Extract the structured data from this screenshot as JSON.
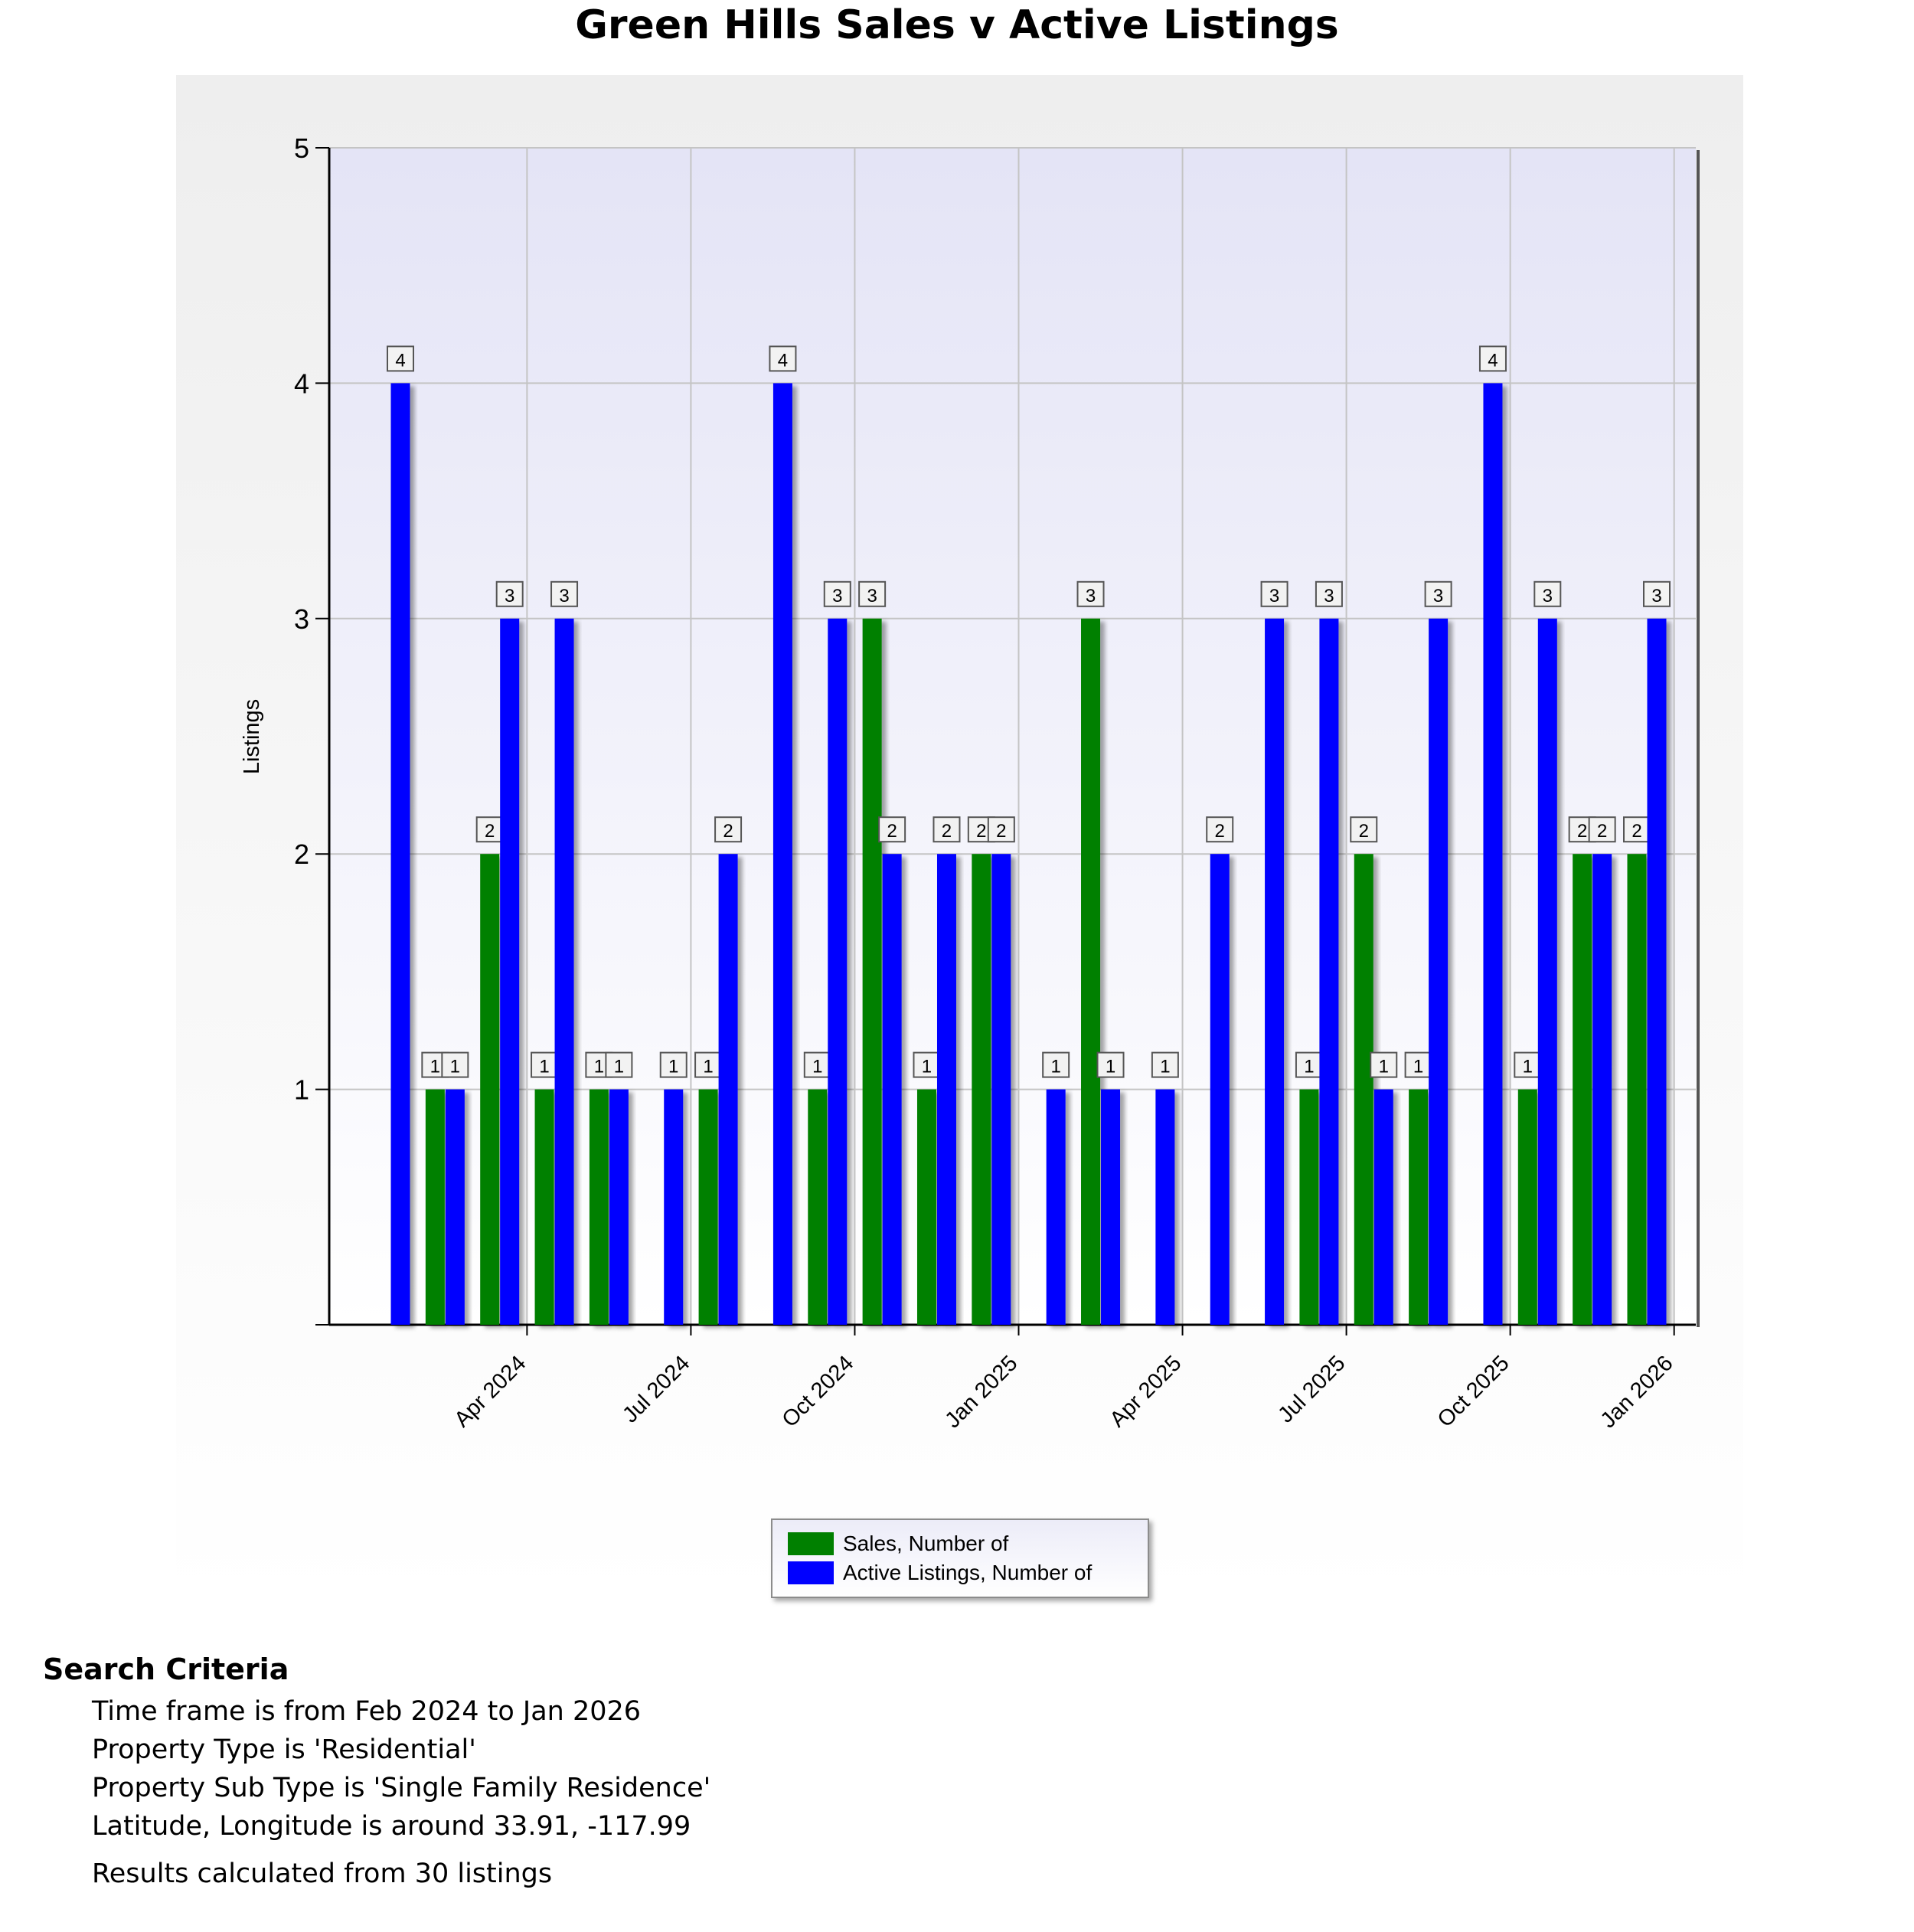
{
  "chart_data": {
    "type": "bar",
    "title": "Green Hills Sales v Active Listings",
    "ylabel": "Listings",
    "xlabel": "",
    "ylim": [
      0,
      5
    ],
    "yticks": [
      "1",
      "2",
      "3",
      "4",
      "5"
    ],
    "grid": true,
    "legend_position": "bottom",
    "x_tick_labels": [
      "Apr 2024",
      "Jul 2024",
      "Oct 2024",
      "Jan 2025",
      "Apr 2025",
      "Jul 2025",
      "Oct 2025",
      "Jan 2026"
    ],
    "categories": [
      "Feb 2024",
      "Mar 2024",
      "Apr 2024",
      "May 2024",
      "Jun 2024",
      "Jul 2024",
      "Aug 2024",
      "Sep 2024",
      "Oct 2024",
      "Nov 2024",
      "Dec 2024",
      "Jan 2025",
      "Feb 2025",
      "Mar 2025",
      "Apr 2025",
      "May 2025",
      "Jun 2025",
      "Jul 2025",
      "Aug 2025",
      "Sep 2025",
      "Oct 2025",
      "Nov 2025",
      "Dec 2025",
      "Jan 2026"
    ],
    "series": [
      {
        "name": "Sales, Number of",
        "color": "#008000",
        "values": [
          0,
          1,
          2,
          1,
          1,
          0,
          1,
          0,
          1,
          3,
          1,
          2,
          0,
          3,
          0,
          0,
          0,
          1,
          2,
          1,
          0,
          1,
          2,
          2
        ]
      },
      {
        "name": "Active Listings, Number of",
        "color": "#0000ff",
        "values": [
          4,
          1,
          3,
          3,
          1,
          1,
          2,
          4,
          3,
          2,
          2,
          2,
          1,
          1,
          1,
          2,
          3,
          3,
          1,
          3,
          4,
          3,
          2,
          3
        ]
      }
    ]
  },
  "criteria": {
    "heading": "Search Criteria",
    "lines": [
      "Time frame is from Feb 2024 to Jan 2026",
      "Property Type is 'Residential'",
      "Property Sub Type is 'Single Family Residence'",
      "Latitude, Longitude is around 33.91, -117.99"
    ],
    "results": "Results calculated from 30 listings"
  }
}
